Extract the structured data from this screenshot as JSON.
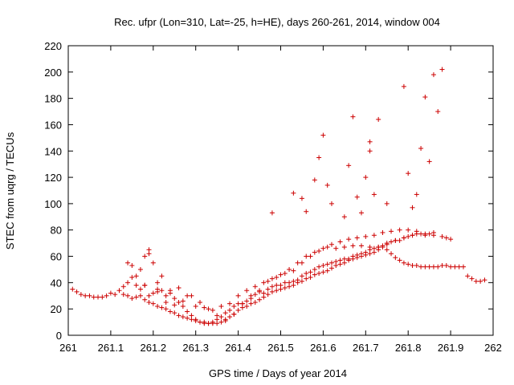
{
  "chart_data": {
    "type": "scatter",
    "title": "Rec. ufpr (Lon=310, Lat=-25, h=HE), days 260-261, 2014, window 004",
    "xlabel": "GPS time / Days of year 2014",
    "ylabel": "STEC from uqrg / TECUs",
    "xlim": [
      261,
      262
    ],
    "ylim": [
      0,
      220
    ],
    "xticks": [
      "261",
      "261.1",
      "261.2",
      "261.3",
      "261.4",
      "261.5",
      "261.6",
      "261.7",
      "261.8",
      "261.9",
      "262"
    ],
    "yticks": [
      "0",
      "20",
      "40",
      "60",
      "80",
      "100",
      "120",
      "140",
      "160",
      "180",
      "200",
      "220"
    ],
    "grid": false,
    "marker": "plus",
    "color": "#cc0000",
    "series": [
      {
        "name": "STEC",
        "x": [
          261.01,
          261.02,
          261.03,
          261.04,
          261.05,
          261.06,
          261.07,
          261.08,
          261.09,
          261.1,
          261.11,
          261.12,
          261.13,
          261.14,
          261.15,
          261.16,
          261.17,
          261.18,
          261.19,
          261.2,
          261.21,
          261.22,
          261.23,
          261.24,
          261.25,
          261.26,
          261.27,
          261.28,
          261.29,
          261.3,
          261.31,
          261.32,
          261.33,
          261.34,
          261.35,
          261.36,
          261.37,
          261.38,
          261.39,
          261.4,
          261.41,
          261.42,
          261.43,
          261.44,
          261.45,
          261.46,
          261.47,
          261.48,
          261.49,
          261.5,
          261.51,
          261.52,
          261.53,
          261.54,
          261.55,
          261.56,
          261.57,
          261.58,
          261.59,
          261.6,
          261.61,
          261.62,
          261.63,
          261.64,
          261.65,
          261.66,
          261.67,
          261.68,
          261.69,
          261.7,
          261.71,
          261.72,
          261.73,
          261.74,
          261.75,
          261.76,
          261.77,
          261.78,
          261.79,
          261.8,
          261.81,
          261.82,
          261.83,
          261.84,
          261.85,
          261.86,
          261.87,
          261.88,
          261.89,
          261.9,
          261.91,
          261.92,
          261.93,
          261.94,
          261.95,
          261.96,
          261.97,
          261.98,
          261.13,
          261.14,
          261.15,
          261.16,
          261.17,
          261.18,
          261.19,
          261.2,
          261.21,
          261.22,
          261.23,
          261.24,
          261.25,
          261.26,
          261.27,
          261.28,
          261.29,
          261.3,
          261.31,
          261.32,
          261.33,
          261.34,
          261.35,
          261.36,
          261.37,
          261.38,
          261.39,
          261.4,
          261.41,
          261.42,
          261.43,
          261.44,
          261.45,
          261.46,
          261.47,
          261.48,
          261.49,
          261.5,
          261.51,
          261.52,
          261.53,
          261.54,
          261.55,
          261.56,
          261.57,
          261.58,
          261.59,
          261.6,
          261.61,
          261.62,
          261.63,
          261.64,
          261.65,
          261.66,
          261.67,
          261.68,
          261.69,
          261.7,
          261.71,
          261.72,
          261.73,
          261.74,
          261.75,
          261.76,
          261.77,
          261.78,
          261.79,
          261.8,
          261.81,
          261.82,
          261.83,
          261.84,
          261.85,
          261.86,
          261.14,
          261.16,
          261.17,
          261.18,
          261.19,
          261.21,
          261.23,
          261.25,
          261.27,
          261.29,
          261.31,
          261.33,
          261.35,
          261.37,
          261.39,
          261.41,
          261.43,
          261.45,
          261.47,
          261.49,
          261.51,
          261.53,
          261.55,
          261.57,
          261.59,
          261.61,
          261.63,
          261.65,
          261.67,
          261.69,
          261.71,
          261.73,
          261.75,
          261.77,
          261.79,
          261.81,
          261.15,
          261.18,
          261.19,
          261.2,
          261.21,
          261.22,
          261.24,
          261.26,
          261.28,
          261.3,
          261.32,
          261.34,
          261.36,
          261.38,
          261.4,
          261.42,
          261.44,
          261.46,
          261.48,
          261.5,
          261.52,
          261.54,
          261.56,
          261.58,
          261.6,
          261.62,
          261.64,
          261.66,
          261.68,
          261.7,
          261.72,
          261.74,
          261.76,
          261.78,
          261.8,
          261.82,
          261.84,
          261.86,
          261.88,
          261.89,
          261.9,
          261.48,
          261.53,
          261.55,
          261.56,
          261.58,
          261.59,
          261.6,
          261.61,
          261.62,
          261.65,
          261.66,
          261.67,
          261.68,
          261.69,
          261.7,
          261.71,
          261.71,
          261.72,
          261.73,
          261.75,
          261.79,
          261.8,
          261.81,
          261.82,
          261.83,
          261.84,
          261.85,
          261.86,
          261.87,
          261.88
        ],
        "y": [
          35,
          33,
          31,
          30,
          30,
          29,
          29,
          29,
          30,
          32,
          31,
          34,
          37,
          40,
          44,
          38,
          35,
          38,
          30,
          32,
          33,
          34,
          30,
          32,
          28,
          25,
          22,
          18,
          15,
          12,
          10,
          10,
          9,
          9,
          9,
          10,
          11,
          14,
          16,
          19,
          21,
          22,
          24,
          25,
          27,
          29,
          31,
          33,
          34,
          35,
          36,
          37,
          38,
          40,
          41,
          43,
          44,
          46,
          47,
          48,
          49,
          51,
          53,
          54,
          55,
          57,
          58,
          59,
          60,
          61,
          62,
          63,
          65,
          67,
          65,
          62,
          59,
          57,
          55,
          54,
          53,
          53,
          52,
          52,
          52,
          52,
          52,
          53,
          53,
          52,
          52,
          52,
          52,
          45,
          43,
          41,
          41,
          42,
          31,
          30,
          28,
          29,
          30,
          27,
          25,
          24,
          22,
          21,
          20,
          18,
          17,
          15,
          14,
          13,
          12,
          11,
          10,
          9,
          9,
          10,
          12,
          14,
          17,
          19,
          22,
          24,
          24,
          26,
          28,
          31,
          33,
          32,
          35,
          37,
          38,
          38,
          40,
          40,
          41,
          42,
          45,
          47,
          48,
          50,
          52,
          53,
          54,
          55,
          56,
          57,
          58,
          58,
          60,
          61,
          62,
          63,
          65,
          66,
          67,
          68,
          69,
          71,
          72,
          72,
          74,
          75,
          76,
          77,
          77,
          76,
          77,
          78,
          55,
          45,
          50,
          60,
          65,
          35,
          25,
          23,
          26,
          30,
          25,
          20,
          15,
          12,
          16,
          24,
          30,
          34,
          41,
          44,
          47,
          49,
          55,
          60,
          64,
          67,
          66,
          67,
          68,
          68,
          67,
          67,
          70,
          72,
          74,
          76,
          53,
          38,
          62,
          55,
          40,
          45,
          34,
          36,
          30,
          22,
          21,
          19,
          22,
          24,
          30,
          34,
          37,
          40,
          43,
          46,
          50,
          55,
          60,
          63,
          66,
          69,
          71,
          73,
          74,
          75,
          76,
          78,
          79,
          80,
          80,
          79,
          77,
          76,
          75,
          74,
          73,
          93,
          108,
          104,
          94,
          118,
          135,
          152,
          114,
          100,
          90,
          129,
          166,
          105,
          93,
          120,
          147,
          140,
          107,
          164,
          100,
          189,
          123,
          97,
          107,
          142,
          181,
          132,
          198,
          170,
          202
        ]
      }
    ]
  }
}
